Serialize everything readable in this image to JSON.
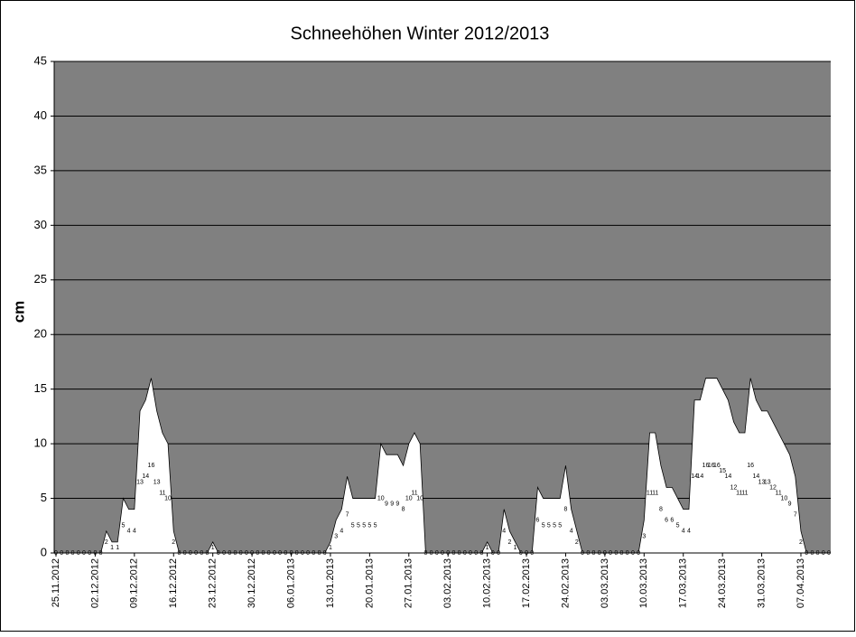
{
  "chart_data": {
    "type": "area",
    "title": "Schneehöhen Winter 2012/2013",
    "y_label": "cm",
    "categories": [
      "25.11.2012",
      null,
      null,
      null,
      null,
      null,
      null,
      "02.12.2012",
      null,
      null,
      null,
      null,
      null,
      null,
      "09.12.2012",
      null,
      null,
      null,
      null,
      null,
      null,
      "16.12.2012",
      null,
      null,
      null,
      null,
      null,
      null,
      "23.12.2012",
      null,
      null,
      null,
      null,
      null,
      null,
      "30.12.2012",
      null,
      null,
      null,
      null,
      null,
      null,
      "06.01.2013",
      null,
      null,
      null,
      null,
      null,
      null,
      "13.01.2013",
      null,
      null,
      null,
      null,
      null,
      null,
      "20.01.2013",
      null,
      null,
      null,
      null,
      null,
      null,
      "27.01.2013",
      null,
      null,
      null,
      null,
      null,
      null,
      "03.02.2013",
      null,
      null,
      null,
      null,
      null,
      null,
      "10.02.2013",
      null,
      null,
      null,
      null,
      null,
      null,
      "17.02.2013",
      null,
      null,
      null,
      null,
      null,
      null,
      "24.02.2013",
      null,
      null,
      null,
      null,
      null,
      null,
      "03.03.2013",
      null,
      null,
      null,
      null,
      null,
      null,
      "10.03.2013",
      null,
      null,
      null,
      null,
      null,
      null,
      "17.03.2013",
      null,
      null,
      null,
      null,
      null,
      null,
      "24.03.2013",
      null,
      null,
      null,
      null,
      null,
      null,
      "31.03.2013",
      null,
      null,
      null,
      null,
      null,
      null,
      "07.04.2013",
      null,
      null,
      null,
      null,
      null
    ],
    "values": [
      0,
      0,
      0,
      0,
      0,
      0,
      0,
      0,
      0,
      2,
      1,
      1,
      5,
      4,
      4,
      13,
      14,
      16,
      13,
      11,
      10,
      2,
      0,
      0,
      0,
      0,
      0,
      0,
      1,
      0,
      0,
      0,
      0,
      0,
      0,
      0,
      0,
      0,
      0,
      0,
      0,
      0,
      0,
      0,
      0,
      0,
      0,
      0,
      0,
      1,
      3,
      4,
      7,
      5,
      5,
      5,
      5,
      5,
      10,
      9,
      9,
      9,
      8,
      10,
      11,
      10,
      0,
      0,
      0,
      0,
      0,
      0,
      0,
      0,
      0,
      0,
      0,
      1,
      0,
      0,
      4,
      2,
      1,
      0,
      0,
      0,
      6,
      5,
      5,
      5,
      5,
      8,
      4,
      2,
      0,
      0,
      0,
      0,
      0,
      0,
      0,
      0,
      0,
      0,
      0,
      3,
      11,
      11,
      8,
      6,
      6,
      5,
      4,
      4,
      14,
      14,
      16,
      16,
      16,
      15,
      14,
      12,
      11,
      11,
      16,
      14,
      13,
      13,
      12,
      11,
      10,
      9,
      7,
      2,
      0,
      0,
      0,
      0,
      0
    ],
    "color": "#ffffff",
    "background": "#808080",
    "ylim": [
      0,
      45
    ],
    "yticks": [
      0,
      5,
      10,
      15,
      20,
      25,
      30,
      35,
      40,
      45
    ],
    "grid": true
  }
}
